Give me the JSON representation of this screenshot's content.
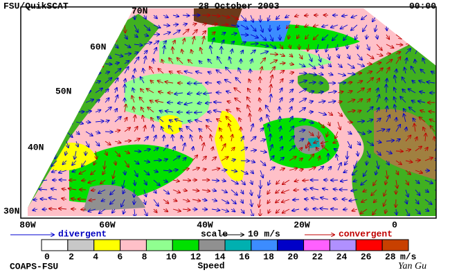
{
  "header": {
    "left": "FSU/QuikSCAT",
    "title": "28 October 2003",
    "time": "00:00"
  },
  "map": {
    "lat_labels": [
      "70N",
      "60N",
      "50N",
      "40N",
      "30N"
    ],
    "lon_labels": [
      "80W",
      "60W",
      "40W",
      "20W",
      "0"
    ]
  },
  "legend": {
    "divergent": "divergent",
    "scale": "scale",
    "scale_value": "10 m/s",
    "convergent": "convergent"
  },
  "colorbar": {
    "ticks": [
      0,
      2,
      4,
      6,
      8,
      10,
      12,
      14,
      16,
      18,
      20,
      22,
      24,
      26,
      28
    ],
    "colors": [
      "#ffffff",
      "#c8c8c8",
      "#ffff00",
      "#ffc0c8",
      "#90ff90",
      "#00e000",
      "#909090",
      "#00b0b0",
      "#3c8cff",
      "#0000c8",
      "#ff60ff",
      "#b090ff",
      "#ff0000",
      "#c84000",
      "#000000"
    ],
    "unit": "m/s",
    "label": "Speed"
  },
  "footer": {
    "left": "COAPS-FSU",
    "signature": "Yan Gu"
  }
}
